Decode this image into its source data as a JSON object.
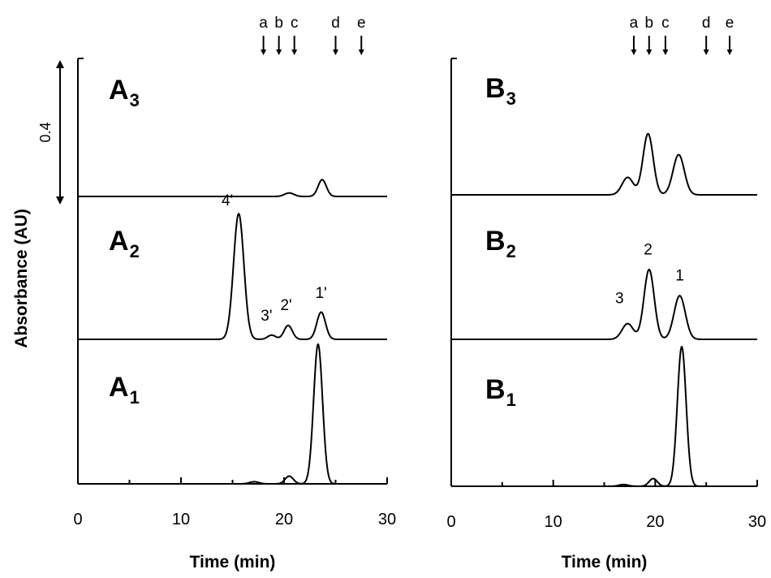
{
  "chart_data": [
    {
      "id": "A",
      "type": "line",
      "xlabel": "Time (min)",
      "ylabel": "Absorbance (AU)",
      "xlim": [
        0,
        30
      ],
      "xticks": [
        "0",
        "10",
        "20",
        "30"
      ],
      "marker_labels": [
        {
          "label": "a",
          "x": 18
        },
        {
          "label": "b",
          "x": 19.5
        },
        {
          "label": "c",
          "x": 21
        },
        {
          "label": "d",
          "x": 25
        },
        {
          "label": "e",
          "x": 27.5
        }
      ],
      "scale_bar": {
        "label": "0.4",
        "value": 0.4
      },
      "traces": [
        {
          "label": "A",
          "sub": "3",
          "peaks": [
            {
              "x": 20.5,
              "height": 0.01,
              "width": 0.45
            },
            {
              "x": 23.7,
              "height": 0.048,
              "width": 0.4
            }
          ],
          "peak_labels": []
        },
        {
          "label": "A",
          "sub": "2",
          "peaks": [
            {
              "x": 15.6,
              "height": 0.36,
              "width": 0.5
            },
            {
              "x": 18.8,
              "height": 0.012,
              "width": 0.4
            },
            {
              "x": 20.4,
              "height": 0.04,
              "width": 0.4
            },
            {
              "x": 23.6,
              "height": 0.078,
              "width": 0.42
            }
          ],
          "peak_labels": [
            {
              "text": "4'",
              "x": 14.5,
              "y": 0.36
            },
            {
              "text": "3'",
              "x": 18.3,
              "y": 0.03
            },
            {
              "text": "2'",
              "x": 20.2,
              "y": 0.06
            },
            {
              "text": "1'",
              "x": 23.6,
              "y": 0.095
            }
          ]
        },
        {
          "label": "A",
          "sub": "1",
          "peaks": [
            {
              "x": 17.1,
              "height": 0.006,
              "width": 0.45
            },
            {
              "x": 20.5,
              "height": 0.022,
              "width": 0.4
            },
            {
              "x": 23.3,
              "height": 0.4,
              "width": 0.43
            }
          ],
          "peak_labels": []
        }
      ]
    },
    {
      "id": "B",
      "type": "line",
      "xlabel": "Time (min)",
      "ylabel": "",
      "xlim": [
        0,
        30
      ],
      "xticks": [
        "0",
        "10",
        "20",
        "30"
      ],
      "marker_labels": [
        {
          "label": "a",
          "x": 17.9
        },
        {
          "label": "b",
          "x": 19.4
        },
        {
          "label": "c",
          "x": 21
        },
        {
          "label": "d",
          "x": 25
        },
        {
          "label": "e",
          "x": 27.3
        }
      ],
      "traces": [
        {
          "label": "B",
          "sub": "3",
          "peaks": [
            {
              "x": 17.3,
              "height": 0.05,
              "width": 0.55
            },
            {
              "x": 19.3,
              "height": 0.175,
              "width": 0.5
            },
            {
              "x": 22.3,
              "height": 0.115,
              "width": 0.55
            }
          ],
          "peak_labels": []
        },
        {
          "label": "B",
          "sub": "2",
          "peaks": [
            {
              "x": 17.3,
              "height": 0.045,
              "width": 0.55
            },
            {
              "x": 19.4,
              "height": 0.2,
              "width": 0.5
            },
            {
              "x": 22.4,
              "height": 0.125,
              "width": 0.55
            }
          ],
          "peak_labels": [
            {
              "text": "3",
              "x": 16.5,
              "y": 0.08
            },
            {
              "text": "2",
              "x": 19.3,
              "y": 0.22
            },
            {
              "text": "1",
              "x": 22.4,
              "y": 0.145
            }
          ]
        },
        {
          "label": "B",
          "sub": "1",
          "peaks": [
            {
              "x": 16.9,
              "height": 0.005,
              "width": 0.45
            },
            {
              "x": 19.8,
              "height": 0.022,
              "width": 0.4
            },
            {
              "x": 22.6,
              "height": 0.4,
              "width": 0.43
            }
          ],
          "peak_labels": []
        }
      ]
    }
  ]
}
